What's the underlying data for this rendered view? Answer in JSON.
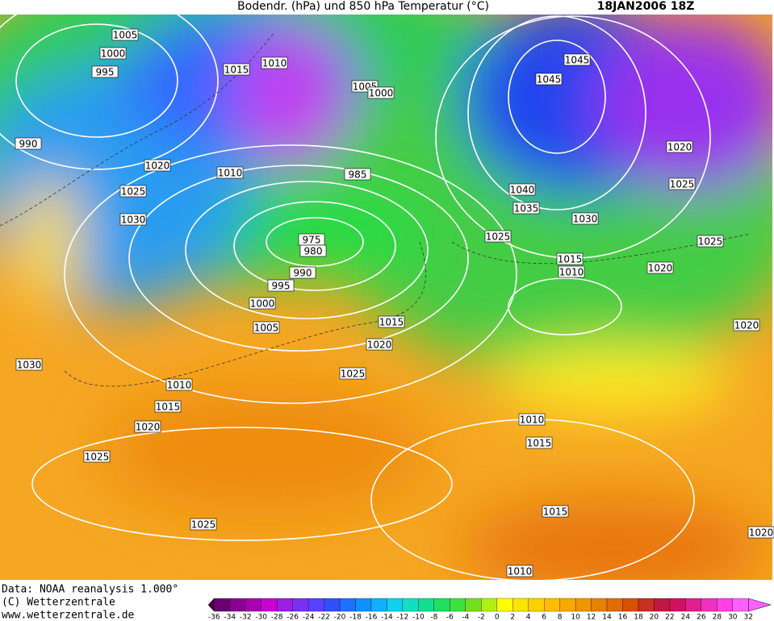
{
  "header": {
    "title": "Bodendr. (hPa) und 850 hPa Temperatur (°C)",
    "date": "18JAN2006 18Z"
  },
  "isobar_labels": [
    "1005",
    "1000",
    "995",
    "990",
    "1020",
    "1025",
    "1030",
    "1015",
    "1010",
    "1005",
    "1000",
    "1010",
    "985",
    "975",
    "980",
    "990",
    "995",
    "1000",
    "1005",
    "1015",
    "1020",
    "1025",
    "1010",
    "1015",
    "1020",
    "1025",
    "1030",
    "1025",
    "1045",
    "1045",
    "1040",
    "1035",
    "1030",
    "1025",
    "1015",
    "1010",
    "1020",
    "1025",
    "1020",
    "1025",
    "1020",
    "1010",
    "1015",
    "1015",
    "1010",
    "1020"
  ],
  "footer": {
    "source": "Data: NOAA reanalysis 1.000°",
    "copyright": "(C) Wetterzentrale",
    "url": "www.wetterzentrale.de"
  },
  "colorbar": {
    "labels": [
      "-36",
      "-34",
      "-32",
      "-30",
      "-28",
      "-26",
      "-24",
      "-22",
      "-20",
      "-18",
      "-16",
      "-14",
      "-12",
      "-10",
      "-8",
      "-6",
      "-4",
      "-2",
      "0",
      "2",
      "4",
      "6",
      "8",
      "10",
      "12",
      "14",
      "16",
      "18",
      "20",
      "22",
      "24",
      "26",
      "28",
      "30",
      "32"
    ]
  }
}
